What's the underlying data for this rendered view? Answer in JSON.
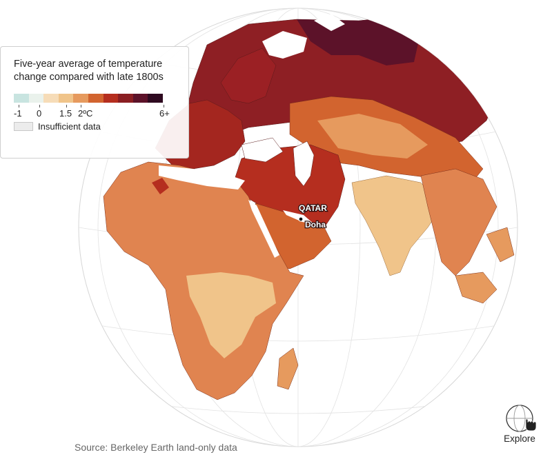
{
  "legend": {
    "title": "Five-year average of temperature change compared with late 1800s",
    "scale_colors": [
      "#c8e4e0",
      "#eaf2ec",
      "#f6dcb8",
      "#f0c48a",
      "#e69a5e",
      "#d2642f",
      "#b52e1f",
      "#8a1e22",
      "#5c1229",
      "#2e0a20"
    ],
    "tick_labels": [
      "-1",
      "0",
      "1.5",
      "2ºC",
      "6+"
    ],
    "insufficient_label": "Insufficient data",
    "insufficient_color": "#ececec"
  },
  "map": {
    "projection": "orthographic",
    "center": "Middle East / Qatar",
    "ocean_color": "#ffffff",
    "graticule": true,
    "labels": {
      "country": "QATAR",
      "city": "Doha"
    },
    "regions": {
      "Russia / Eastern Europe": "≥ 2ºC (dark red)",
      "Middle East / Iran": "≥ 2ºC (red)",
      "Central Asia": "1.5–2ºC (orange)",
      "India": "0–1.5ºC (light tan)",
      "Africa": "1–2ºC (tan/orange)"
    }
  },
  "source": "Source: Berkeley Earth land-only data",
  "explore": {
    "label": "Explore",
    "icon": "globe-hand-icon"
  }
}
